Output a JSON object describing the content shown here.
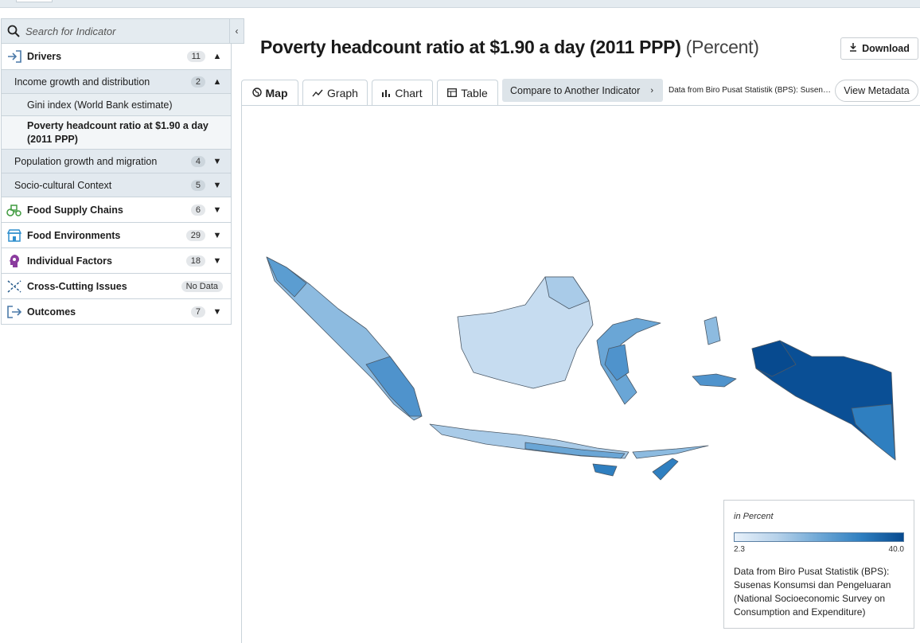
{
  "search": {
    "placeholder": "Search for Indicator"
  },
  "nav": {
    "drivers": {
      "label": "Drivers",
      "count": "11"
    },
    "income": {
      "label": "Income growth and distribution",
      "count": "2"
    },
    "gini": {
      "label": "Gini index (World Bank estimate)"
    },
    "poverty": {
      "label": "Poverty headcount ratio at $1.90 a day (2011 PPP)"
    },
    "population": {
      "label": "Population growth and migration",
      "count": "4"
    },
    "sociocultural": {
      "label": "Socio-cultural Context",
      "count": "5"
    },
    "food_supply": {
      "label": "Food Supply Chains",
      "count": "6"
    },
    "food_env": {
      "label": "Food Environments",
      "count": "29"
    },
    "individual": {
      "label": "Individual Factors",
      "count": "18"
    },
    "crosscutting": {
      "label": "Cross-Cutting Issues",
      "count": "No Data"
    },
    "outcomes": {
      "label": "Outcomes",
      "count": "7"
    }
  },
  "header": {
    "title": "Poverty headcount ratio at $1.90 a day (2011 PPP)",
    "unit": "(Percent)",
    "download_label": "Download"
  },
  "tabs": [
    {
      "label": "Map"
    },
    {
      "label": "Graph"
    },
    {
      "label": "Chart"
    },
    {
      "label": "Table"
    }
  ],
  "compare_label": "Compare to Another Indicator",
  "source_text": "Data from Biro Pusat Statistik (BPS): Susenas Konsumsi dan Pengeluaran",
  "metadata_label": "View Metadata",
  "legend": {
    "title": "in Percent",
    "min": "2.3",
    "max": "40.0",
    "description": "Data from Biro Pusat Statistik (BPS): Susenas Konsumsi dan Pengeluaran (National Socioeconomic Survey on Consumption and Expenditure)"
  },
  "colors": {
    "low": "#e8f1fa",
    "mid": "#6fa8d6",
    "high": "#074a8f",
    "border": "#4a5866"
  }
}
